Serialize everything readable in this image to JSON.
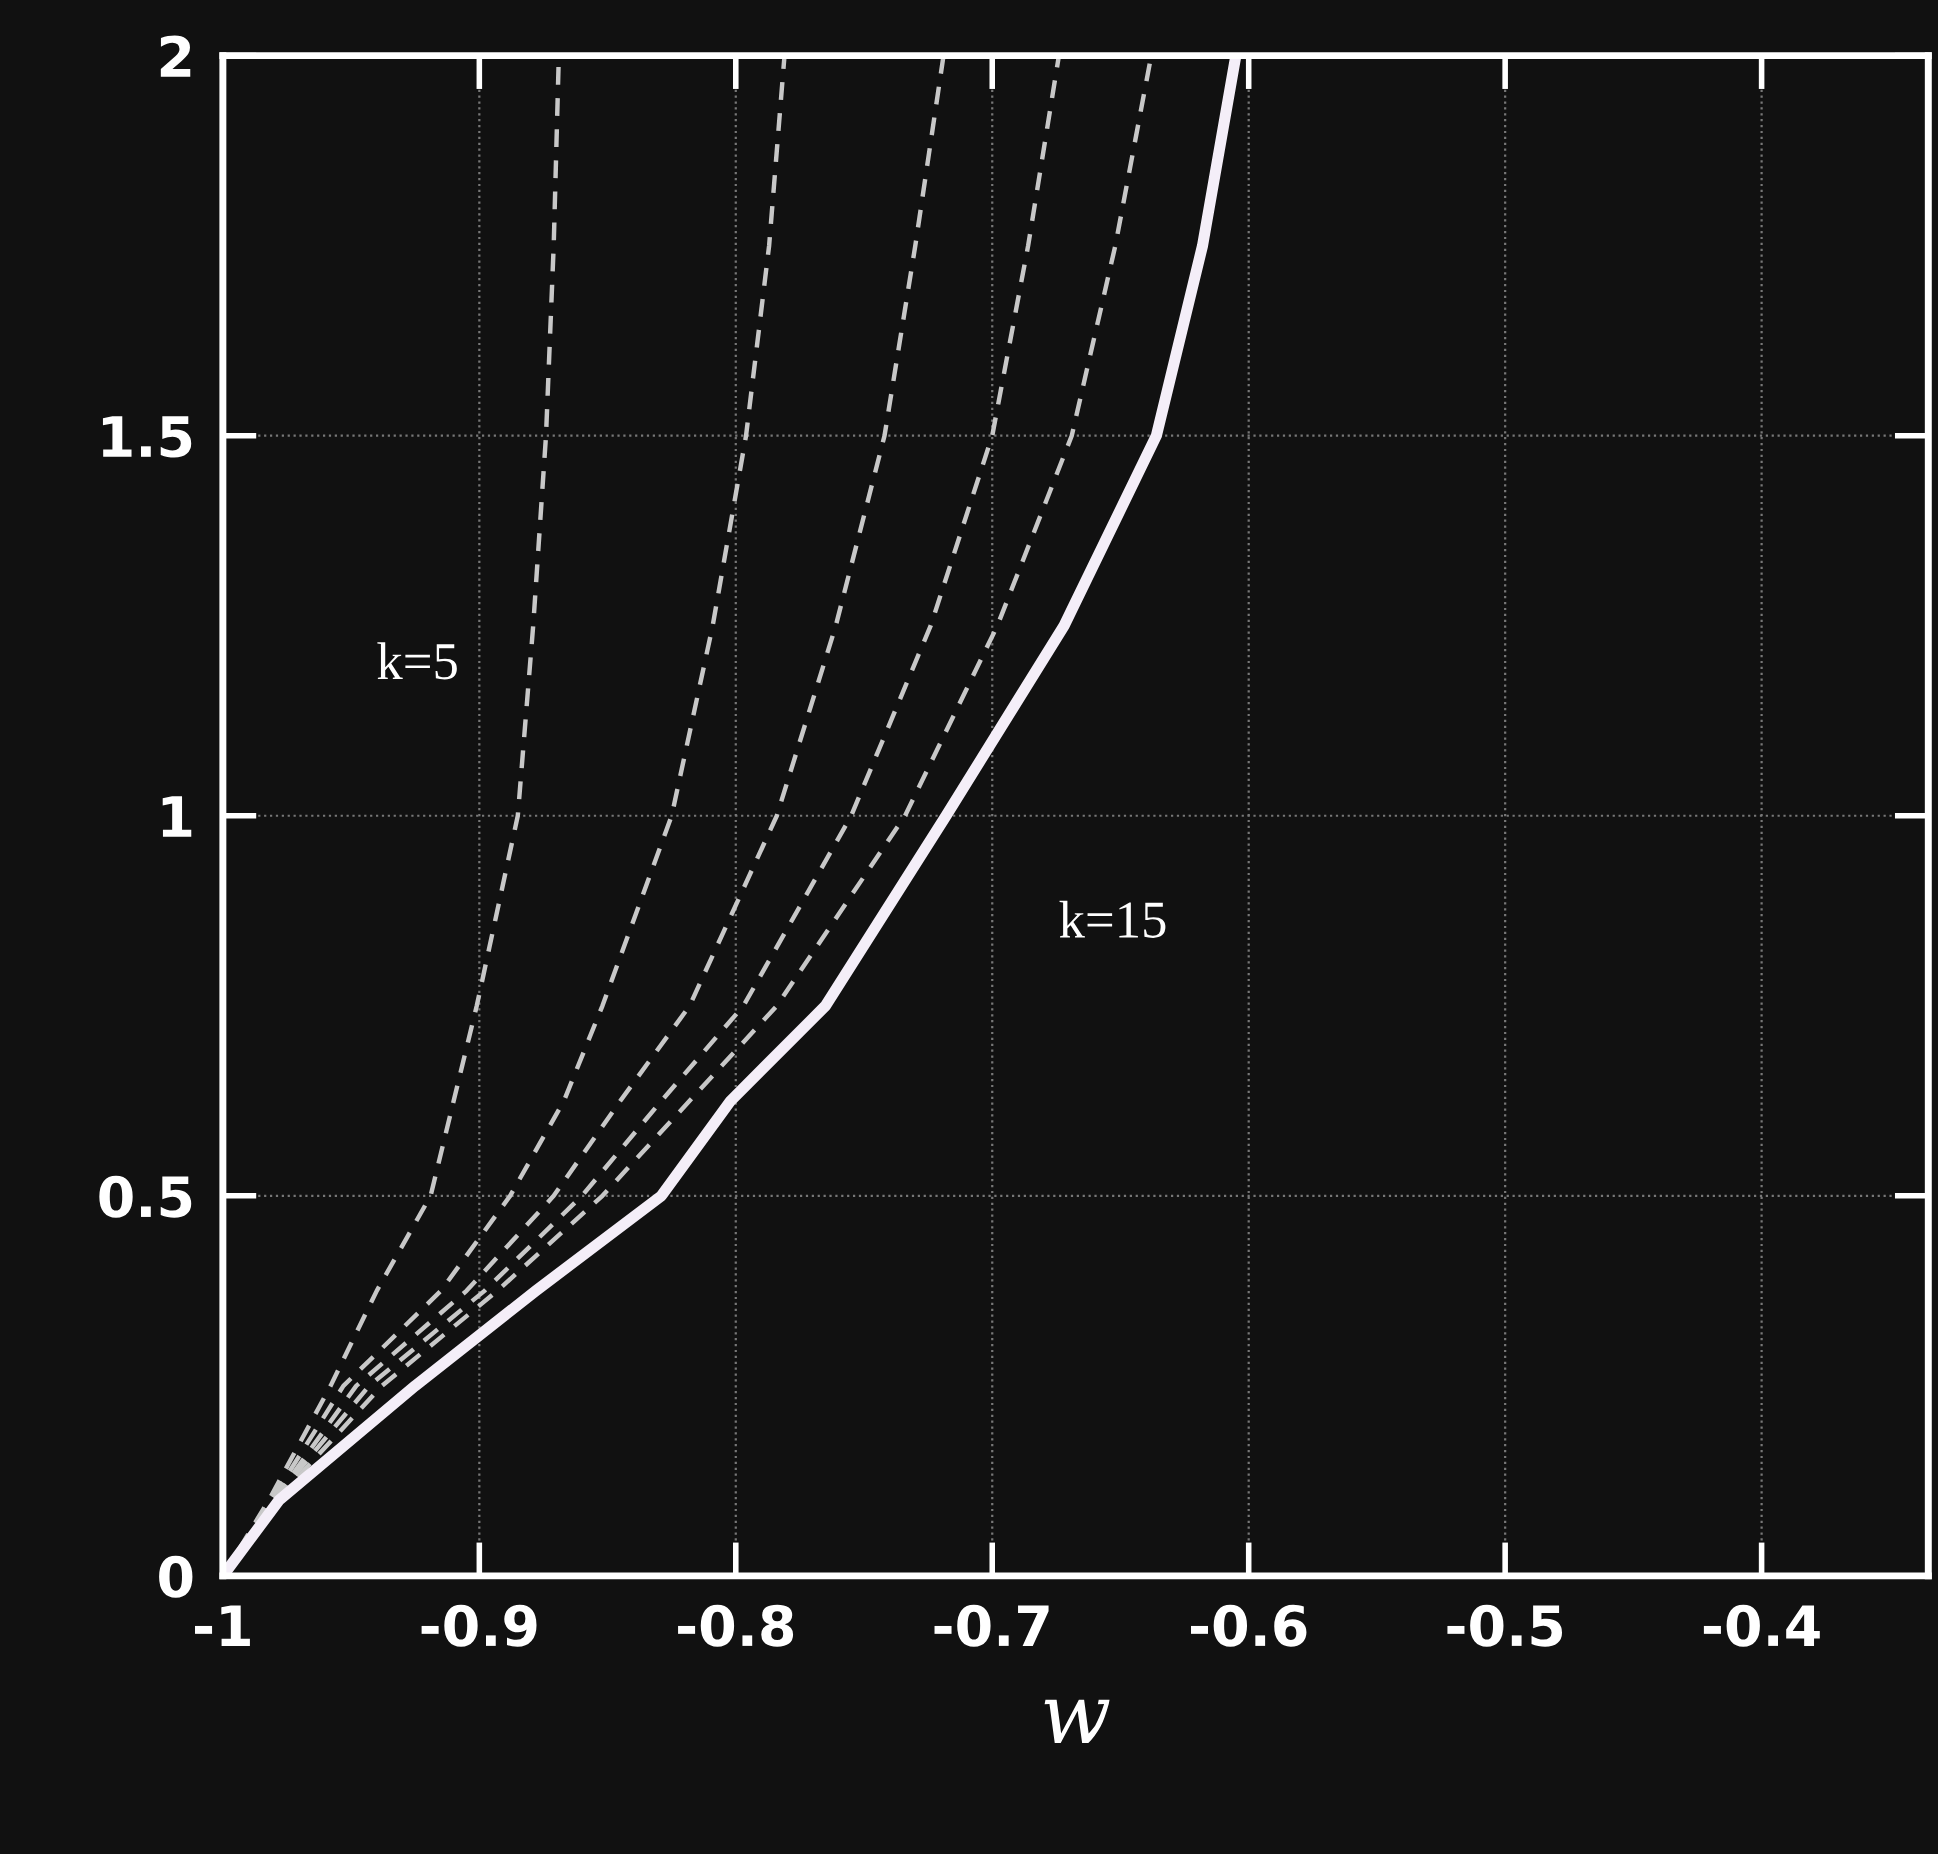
{
  "chart_data": {
    "type": "line",
    "xlabel": "w",
    "xlim": [
      -1,
      -0.335
    ],
    "ylim": [
      0,
      2
    ],
    "xticks": [
      -1,
      -0.9,
      -0.8,
      -0.7,
      -0.6,
      -0.5,
      -0.4
    ],
    "yticks": [
      0,
      0.5,
      1,
      1.5,
      2
    ],
    "grid": true,
    "marker": "none",
    "series": [
      {
        "color": "#c8c8c8",
        "line_style": "dashed",
        "x": [
          -1,
          -0.982,
          -0.958,
          -0.94,
          -0.919,
          -0.91,
          -0.901,
          -0.885,
          -0.879,
          -0.874,
          -0.871,
          -0.869
        ],
        "values": [
          0,
          0.1,
          0.25,
          0.375,
          0.5,
          0.625,
          0.75,
          1.0,
          1.25,
          1.5,
          1.75,
          2
        ]
      },
      {
        "color": "#c8c8c8",
        "line_style": "dashed",
        "x": [
          -1,
          -0.981,
          -0.953,
          -0.915,
          -0.888,
          -0.867,
          -0.852,
          -0.825,
          -0.809,
          -0.796,
          -0.787,
          -0.781
        ],
        "values": [
          0,
          0.1,
          0.25,
          0.375,
          0.5,
          0.625,
          0.75,
          1.0,
          1.25,
          1.5,
          1.75,
          2
        ]
      },
      {
        "color": "#c8c8c8",
        "line_style": "dashed",
        "x": [
          -1,
          -0.98,
          -0.948,
          -0.905,
          -0.871,
          -0.845,
          -0.818,
          -0.784,
          -0.761,
          -0.742,
          -0.73,
          -0.719
        ],
        "values": [
          0,
          0.1,
          0.25,
          0.375,
          0.5,
          0.625,
          0.75,
          1.0,
          1.25,
          1.5,
          1.75,
          2
        ]
      },
      {
        "color": "#c8c8c8",
        "line_style": "dashed",
        "x": [
          -1,
          -0.98,
          -0.943,
          -0.898,
          -0.86,
          -0.829,
          -0.797,
          -0.755,
          -0.724,
          -0.7,
          -0.686,
          -0.674
        ],
        "values": [
          0,
          0.1,
          0.25,
          0.375,
          0.5,
          0.625,
          0.75,
          1.0,
          1.25,
          1.5,
          1.75,
          2
        ]
      },
      {
        "color": "#c8c8c8",
        "line_style": "dashed",
        "x": [
          -1,
          -0.979,
          -0.938,
          -0.893,
          -0.852,
          -0.818,
          -0.784,
          -0.734,
          -0.698,
          -0.669,
          -0.652,
          -0.638
        ],
        "values": [
          0,
          0.1,
          0.25,
          0.375,
          0.5,
          0.625,
          0.75,
          1.0,
          1.25,
          1.5,
          1.75,
          2
        ]
      },
      {
        "color": "#f4eef8",
        "line_style": "solid",
        "x": [
          -1,
          -0.978,
          -0.925,
          -0.878,
          -0.829,
          -0.802,
          -0.765,
          -0.718,
          -0.672,
          -0.636,
          -0.618,
          -0.605
        ],
        "values": [
          0,
          0.1,
          0.25,
          0.375,
          0.5,
          0.625,
          0.75,
          1.0,
          1.25,
          1.5,
          1.75,
          2
        ]
      }
    ],
    "annotations": [
      "k=5",
      "k=15"
    ]
  }
}
